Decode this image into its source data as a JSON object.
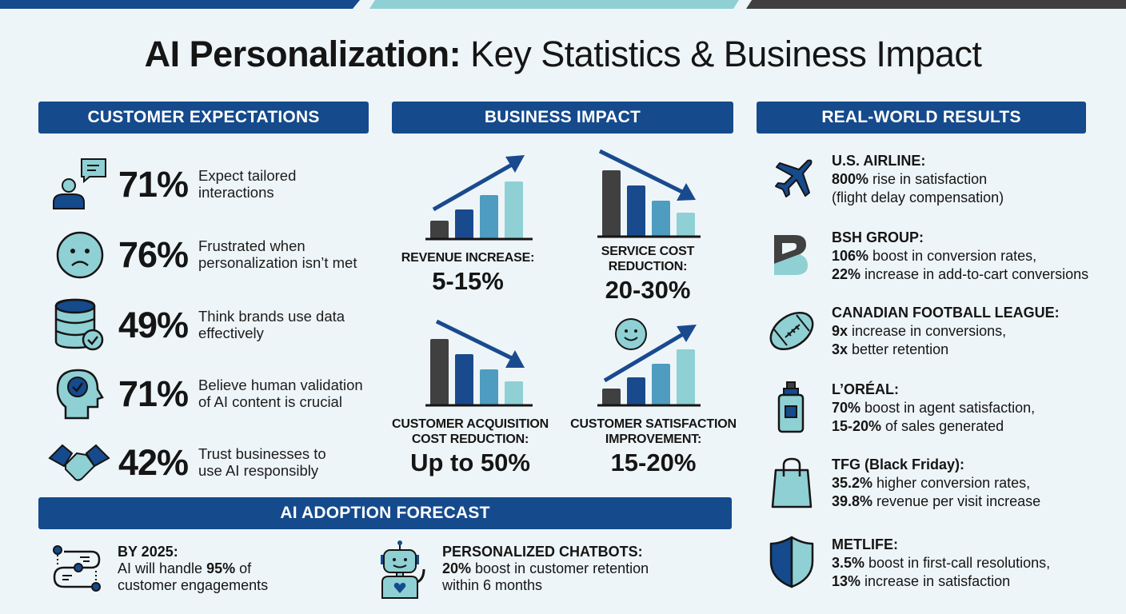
{
  "title": {
    "bold": "AI Personalization:",
    "rest": "Key Statistics & Business Impact"
  },
  "colors": {
    "primary": "#154a8c",
    "teal": "#8fd0d4",
    "dark": "#404040",
    "mid_blue": "#4e9cc0",
    "background": "#eef5f8"
  },
  "customer_expectations": {
    "header": "CUSTOMER EXPECTATIONS",
    "items": [
      {
        "icon": "person-chat-icon",
        "value": "71%",
        "desc1": "Expect tailored",
        "desc2": "interactions"
      },
      {
        "icon": "sad-face-icon",
        "value": "76%",
        "desc1": "Frustrated when",
        "desc2": "personalization isn’t met"
      },
      {
        "icon": "database-check-icon",
        "value": "49%",
        "desc1": "Think brands use data",
        "desc2": "effectively"
      },
      {
        "icon": "head-check-icon",
        "value": "71%",
        "desc1": "Believe human validation",
        "desc2": "of AI content is crucial"
      },
      {
        "icon": "handshake-icon",
        "value": "42%",
        "desc1": "Trust businesses to",
        "desc2": "use AI responsibly"
      }
    ]
  },
  "business_impact": {
    "header": "BUSINESS IMPACT",
    "items": [
      {
        "icon": "bar-chart-up-icon",
        "label1": "REVENUE INCREASE:",
        "label2": "",
        "value": "5-15%"
      },
      {
        "icon": "bar-chart-down-icon",
        "label1": "SERVICE COST",
        "label2": "REDUCTION:",
        "value": "20-30%"
      },
      {
        "icon": "bar-chart-down-icon",
        "label1": "CUSTOMER ACQUISITION",
        "label2": "COST REDUCTION:",
        "value": "Up to 50%"
      },
      {
        "icon": "bar-chart-up-smile-icon",
        "label1": "CUSTOMER SATISFACTION",
        "label2": "IMPROVEMENT:",
        "value": "15-20%"
      }
    ]
  },
  "real_world_results": {
    "header": "REAL-WORLD RESULTS",
    "items": [
      {
        "icon": "airplane-icon",
        "name": "U.S. AIRLINE:",
        "l1b": "800%",
        "l1": " rise in satisfaction",
        "l2b": "",
        "l2": "(flight delay compensation)"
      },
      {
        "icon": "bsh-logo-icon",
        "name": "BSH GROUP:",
        "l1b": "106%",
        "l1": " boost in conversion rates,",
        "l2b": "22%",
        "l2": " increase in add-to-cart conversions"
      },
      {
        "icon": "football-icon",
        "name": "CANADIAN FOOTBALL LEAGUE:",
        "l1b": "9x",
        "l1": " increase in conversions,",
        "l2b": "3x",
        "l2": " better retention"
      },
      {
        "icon": "bottle-icon",
        "name": "L’ORÉAL:",
        "l1b": "70%",
        "l1": " boost in agent satisfaction,",
        "l2b": "15-20%",
        "l2": " of sales generated"
      },
      {
        "icon": "shopping-bag-icon",
        "name": "TFG (Black Friday):",
        "l1b": "35.2%",
        "l1": " higher conversion rates,",
        "l2b": "39.8%",
        "l2": " revenue per visit increase"
      },
      {
        "icon": "shield-icon",
        "name": "METLIFE:",
        "l1b": "3.5%",
        "l1": " boost in first-call resolutions,",
        "l2b": "13%",
        "l2": " increase in satisfaction"
      }
    ]
  },
  "adoption_forecast": {
    "header": "AI ADOPTION FORECAST",
    "items": [
      {
        "icon": "timeline-icon",
        "head": "BY 2025:",
        "l1a": "AI will handle ",
        "l1b": "95%",
        "l1c": " of",
        "l2": "customer engagements"
      },
      {
        "icon": "robot-icon",
        "head": "PERSONALIZED CHATBOTS:",
        "l1a": "",
        "l1b": "20%",
        "l1c": " boost in customer retention",
        "l2": "within 6 months"
      }
    ]
  }
}
